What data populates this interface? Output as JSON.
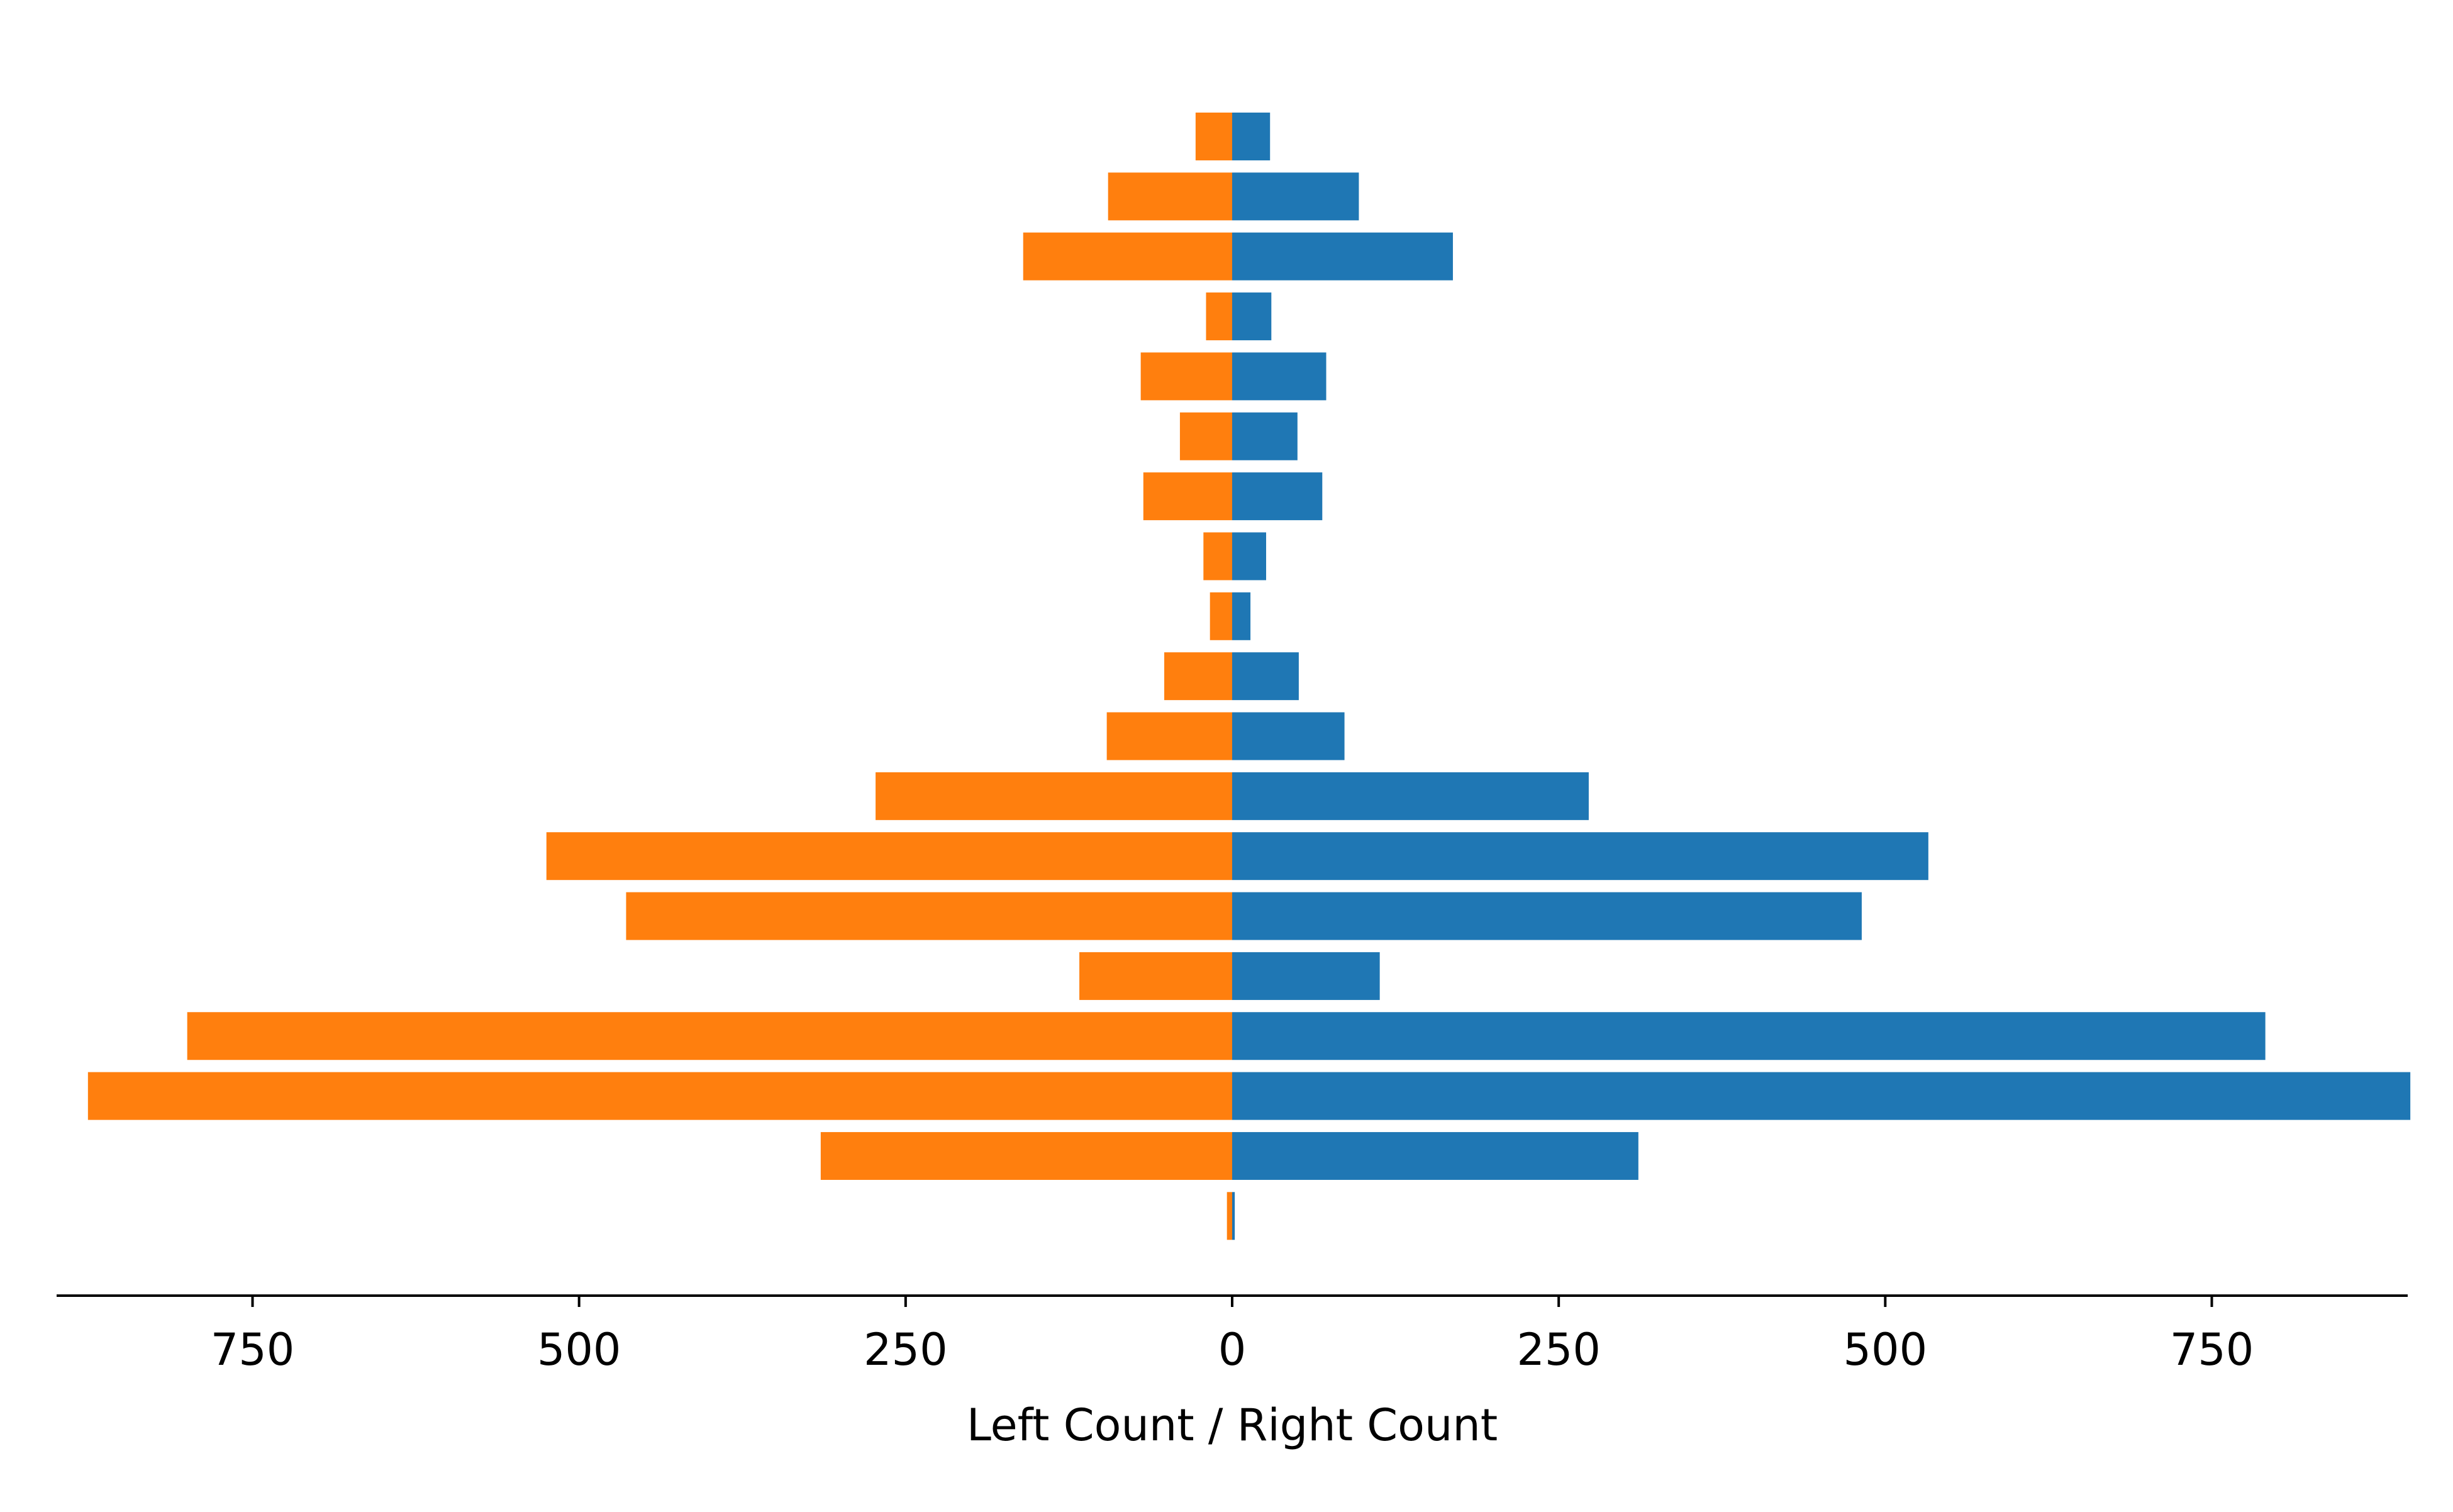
{
  "chart_data": {
    "type": "bar",
    "orientation": "horizontal-diverging",
    "title": "",
    "xlabel": "Left Count / Right Count",
    "ylabel": "",
    "xlim": [
      -900,
      900
    ],
    "grid": false,
    "legend": "none",
    "x_ticks": [
      {
        "value": -750,
        "label": "750"
      },
      {
        "value": -500,
        "label": "500"
      },
      {
        "value": -250,
        "label": "250"
      },
      {
        "value": 0,
        "label": "0"
      },
      {
        "value": 250,
        "label": "250"
      },
      {
        "value": 500,
        "label": "500"
      },
      {
        "value": 750,
        "label": "750"
      }
    ],
    "series": [
      {
        "side": "left",
        "color": "#ff7f0e",
        "values": [
          28,
          95,
          160,
          20,
          70,
          40,
          68,
          22,
          17,
          52,
          96,
          273,
          525,
          464,
          117,
          800,
          876,
          315,
          4
        ]
      },
      {
        "side": "right",
        "color": "#1f77b4",
        "values": [
          29,
          97,
          169,
          30,
          72,
          50,
          69,
          26,
          14,
          51,
          86,
          273,
          533,
          482,
          113,
          791,
          902,
          311,
          2
        ]
      }
    ]
  }
}
